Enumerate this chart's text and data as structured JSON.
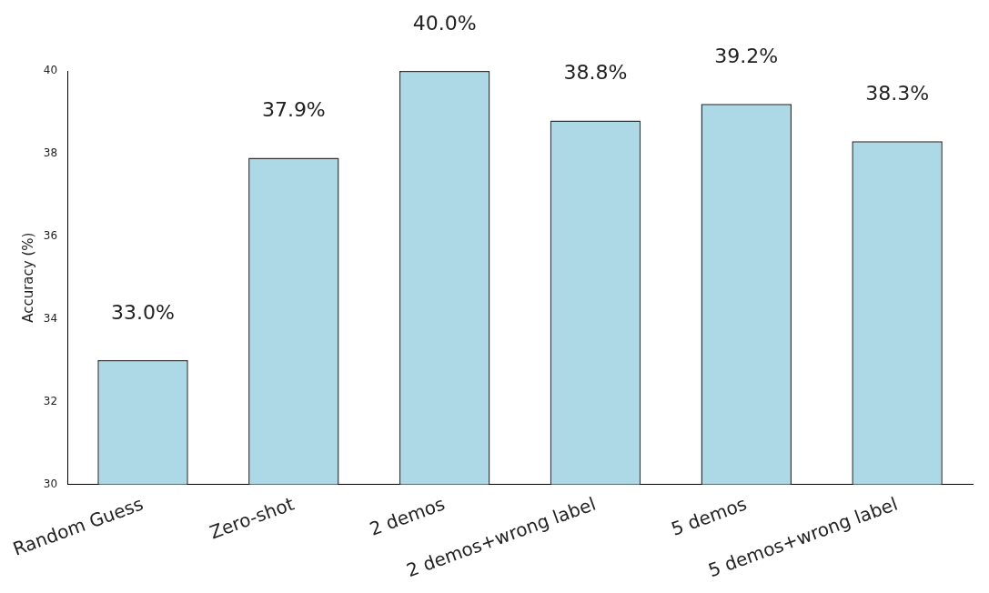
{
  "chart_data": {
    "type": "bar",
    "ylabel": "Accuracy (%)",
    "categories": [
      "Random Guess",
      "Zero-shot",
      "2 demos",
      "2 demos+wrong label",
      "5 demos",
      "5 demos+wrong label"
    ],
    "values": [
      33.0,
      37.9,
      40.0,
      38.8,
      39.2,
      38.3
    ],
    "value_labels": [
      "33.0%",
      "37.9%",
      "40.0%",
      "38.8%",
      "39.2%",
      "38.3%"
    ],
    "color": "#add8e6",
    "ylim": [
      30,
      40
    ],
    "yticks": [
      30,
      32,
      34,
      36,
      38,
      40
    ],
    "grid": false,
    "legend": false
  }
}
